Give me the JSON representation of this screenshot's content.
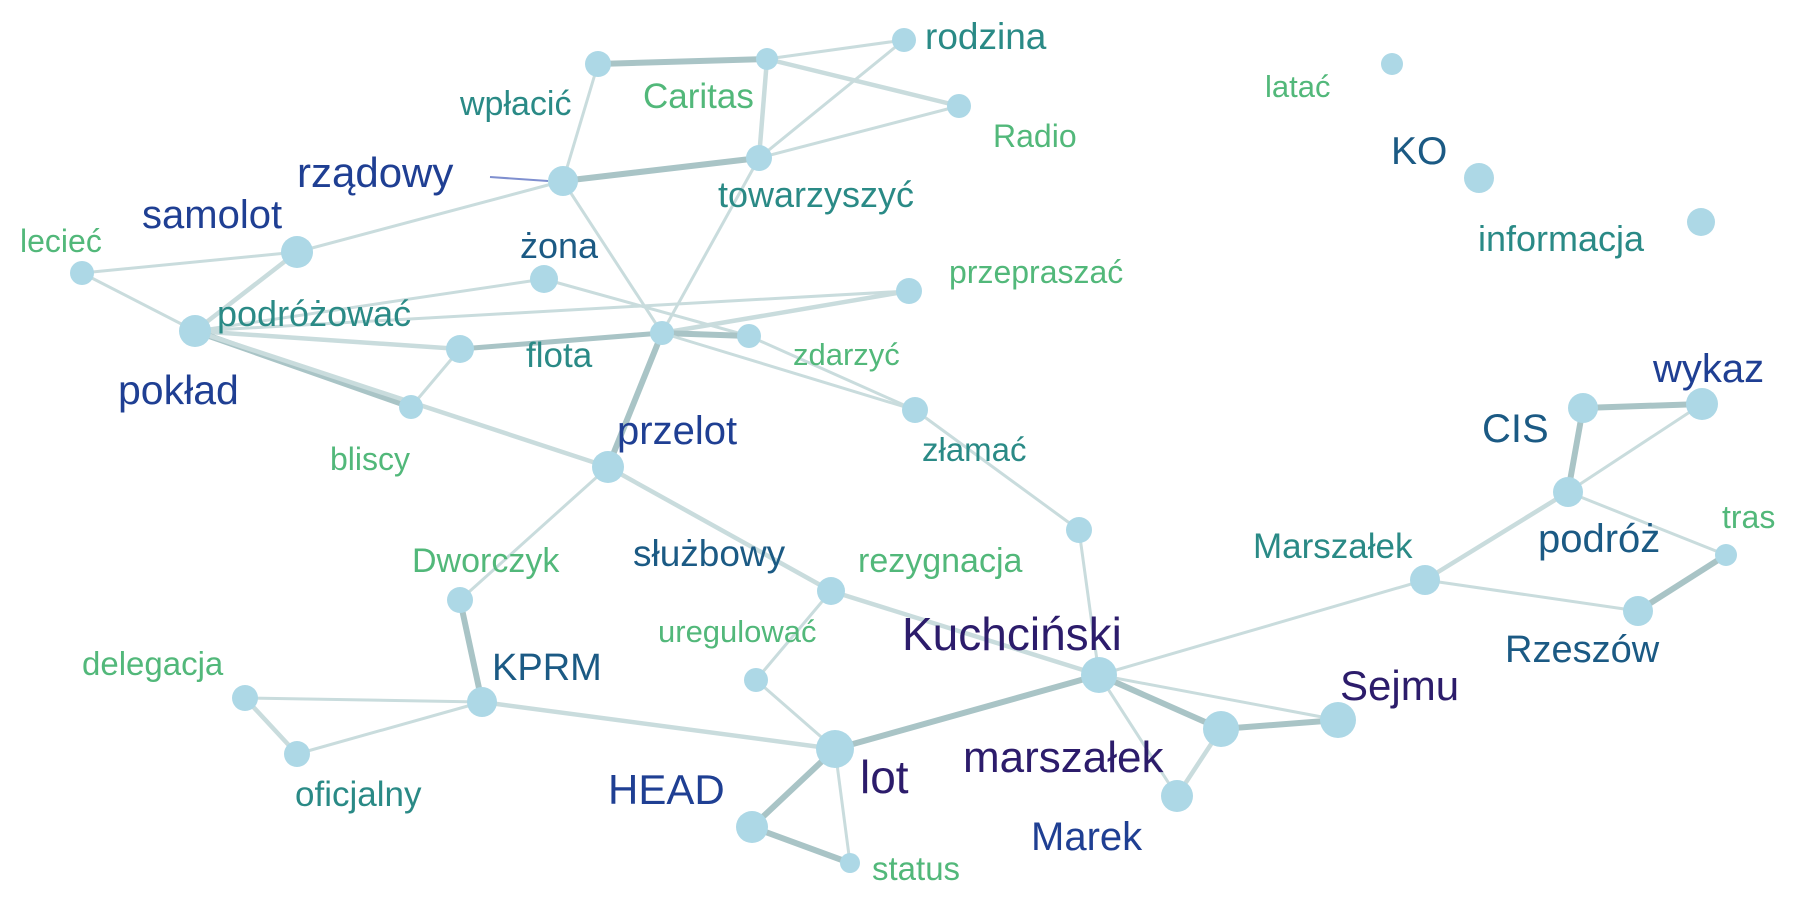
{
  "colors": {
    "node": "#add8e6",
    "edge": "#a9c4c6",
    "edge_light": "#c9dcdd",
    "edge_blue": "#7f8fcf",
    "label_green": "#52b87a",
    "label_teal": "#2a8a86",
    "label_blue": "#1b5a84",
    "label_navy": "#1f3f93",
    "label_dark": "#2c1c6b"
  },
  "nodes": [
    {
      "id": "rodzina",
      "label": "rodzina",
      "tone": "label_teal"
    },
    {
      "id": "caritas",
      "label": "Caritas",
      "tone": "label_green"
    },
    {
      "id": "wplacic",
      "label": "wpłacić",
      "tone": "label_teal"
    },
    {
      "id": "radio",
      "label": "Radio",
      "tone": "label_green"
    },
    {
      "id": "towarzyszyc",
      "label": "towarzyszyć",
      "tone": "label_teal"
    },
    {
      "id": "rzadowy",
      "label": "rządowy",
      "tone": "label_navy"
    },
    {
      "id": "samolot",
      "label": "samolot",
      "tone": "label_navy"
    },
    {
      "id": "leciec",
      "label": "lecieć",
      "tone": "label_green"
    },
    {
      "id": "zona",
      "label": "żona",
      "tone": "label_blue"
    },
    {
      "id": "przepraszac",
      "label": "przepraszać",
      "tone": "label_green"
    },
    {
      "id": "podrozowac",
      "label": "podróżować",
      "tone": "label_teal"
    },
    {
      "id": "poklad",
      "label": "pokład",
      "tone": "label_navy"
    },
    {
      "id": "flota",
      "label": "flota",
      "tone": "label_teal"
    },
    {
      "id": "zdarzyc",
      "label": "zdarzyć",
      "tone": "label_green"
    },
    {
      "id": "bliscy",
      "label": "bliscy",
      "tone": "label_green"
    },
    {
      "id": "zlamac",
      "label": "złamać",
      "tone": "label_teal"
    },
    {
      "id": "przelot",
      "label": "przelot",
      "tone": "label_navy"
    },
    {
      "id": "rezygnacja",
      "label": "rezygnacja",
      "tone": "label_green"
    },
    {
      "id": "dworczyk",
      "label": "Dworczyk",
      "tone": "label_green"
    },
    {
      "id": "sluzbowy",
      "label": "służbowy",
      "tone": "label_blue"
    },
    {
      "id": "uregulowac",
      "label": "uregulować",
      "tone": "label_green"
    },
    {
      "id": "kprm",
      "label": "KPRM",
      "tone": "label_blue"
    },
    {
      "id": "delegacja",
      "label": "delegacja",
      "tone": "label_green"
    },
    {
      "id": "oficjalny",
      "label": "oficjalny",
      "tone": "label_teal"
    },
    {
      "id": "kuchcinski",
      "label": "Kuchciński",
      "tone": "label_dark"
    },
    {
      "id": "lot",
      "label": "lot",
      "tone": "label_dark"
    },
    {
      "id": "head",
      "label": "HEAD",
      "tone": "label_navy"
    },
    {
      "id": "status",
      "label": "status",
      "tone": "label_green"
    },
    {
      "id": "marszalek_lower",
      "label": "marszałek",
      "tone": "label_dark"
    },
    {
      "id": "sejmu",
      "label": "Sejmu",
      "tone": "label_dark"
    },
    {
      "id": "marek",
      "label": "Marek",
      "tone": "label_navy"
    },
    {
      "id": "latac",
      "label": "latać",
      "tone": "label_green"
    },
    {
      "id": "ko",
      "label": "KO",
      "tone": "label_blue"
    },
    {
      "id": "informacja",
      "label": "informacja",
      "tone": "label_teal"
    },
    {
      "id": "wykaz",
      "label": "wykaz",
      "tone": "label_navy"
    },
    {
      "id": "cis",
      "label": "CIS",
      "tone": "label_blue"
    },
    {
      "id": "marszalek_upper",
      "label": "Marszałek",
      "tone": "label_teal"
    },
    {
      "id": "podroz",
      "label": "podróż",
      "tone": "label_blue"
    },
    {
      "id": "tras",
      "label": "tras",
      "tone": "label_green"
    },
    {
      "id": "rzeszow",
      "label": "Rzeszów",
      "tone": "label_blue"
    }
  ],
  "edges": [
    {
      "source": "wplacic",
      "target": "caritas",
      "weight": 3
    },
    {
      "source": "caritas",
      "target": "rodzina",
      "weight": 1
    },
    {
      "source": "caritas",
      "target": "radio",
      "weight": 2
    },
    {
      "source": "caritas",
      "target": "towarzyszyc",
      "weight": 2
    },
    {
      "source": "rodzina",
      "target": "towarzyszyc",
      "weight": 1
    },
    {
      "source": "radio",
      "target": "towarzyszyc",
      "weight": 1
    },
    {
      "source": "wplacic",
      "target": "rzadowy",
      "weight": 1
    },
    {
      "source": "rzadowy",
      "target": "towarzyszyc",
      "weight": 3
    },
    {
      "source": "rzadowy",
      "target": "samolot",
      "weight": 1
    },
    {
      "source": "rzadowy",
      "target": "flota",
      "weight": 1
    },
    {
      "source": "towarzyszyc",
      "target": "flota",
      "weight": 1
    },
    {
      "source": "samolot",
      "target": "leciec",
      "weight": 1
    },
    {
      "source": "samolot",
      "target": "poklad",
      "weight": 1
    },
    {
      "source": "samolot",
      "target": "podrozowac",
      "weight": 2
    },
    {
      "source": "leciec",
      "target": "poklad",
      "weight": 1
    },
    {
      "source": "poklad",
      "target": "podrozowac",
      "weight": 2
    },
    {
      "source": "podrozowac",
      "target": "zona",
      "weight": 1
    },
    {
      "source": "podrozowac",
      "target": "flota",
      "weight": 2
    },
    {
      "source": "podrozowac",
      "target": "przepraszac",
      "weight": 1
    },
    {
      "source": "podrozowac",
      "target": "bliscy",
      "weight": 3
    },
    {
      "source": "podrozowac",
      "target": "przelot",
      "weight": 2
    },
    {
      "source": "zona",
      "target": "zdarzyc",
      "weight": 1
    },
    {
      "source": "flota",
      "target": "przepraszac",
      "weight": 2
    },
    {
      "source": "flota",
      "target": "zdarzyc",
      "weight": 3
    },
    {
      "source": "flota",
      "target": "zlamac",
      "weight": 1
    },
    {
      "source": "flota",
      "target": "przelot",
      "weight": 3
    },
    {
      "source": "flota",
      "target": "bliscy",
      "weight": 1
    },
    {
      "source": "zdarzyc",
      "target": "zlamac",
      "weight": 1
    },
    {
      "source": "zlamac",
      "target": "rezygnacja",
      "weight": 1
    },
    {
      "source": "przelot",
      "target": "dworczyk",
      "weight": 1
    },
    {
      "source": "przelot",
      "target": "sluzbowy",
      "weight": 2
    },
    {
      "source": "dworczyk",
      "target": "kprm",
      "weight": 3
    },
    {
      "source": "kprm",
      "target": "delegacja",
      "weight": 1
    },
    {
      "source": "kprm",
      "target": "oficjalny",
      "weight": 1
    },
    {
      "source": "delegacja",
      "target": "oficjalny",
      "weight": 2
    },
    {
      "source": "kprm",
      "target": "lot",
      "weight": 2
    },
    {
      "source": "sluzbowy",
      "target": "kuchcinski",
      "weight": 2
    },
    {
      "source": "sluzbowy",
      "target": "uregulowac",
      "weight": 1
    },
    {
      "source": "uregulowac",
      "target": "lot",
      "weight": 1
    },
    {
      "source": "rezygnacja",
      "target": "kuchcinski",
      "weight": 1
    },
    {
      "source": "lot",
      "target": "kuchcinski",
      "weight": 3
    },
    {
      "source": "lot",
      "target": "head",
      "weight": 3
    },
    {
      "source": "lot",
      "target": "status",
      "weight": 1
    },
    {
      "source": "head",
      "target": "status",
      "weight": 3
    },
    {
      "source": "kuchcinski",
      "target": "marszalek_lower",
      "weight": 3
    },
    {
      "source": "kuchcinski",
      "target": "sejmu",
      "weight": 1
    },
    {
      "source": "kuchcinski",
      "target": "marek",
      "weight": 1
    },
    {
      "source": "marszalek_lower",
      "target": "sejmu",
      "weight": 3
    },
    {
      "source": "marszalek_lower",
      "target": "marek",
      "weight": 2
    },
    {
      "source": "kuchcinski",
      "target": "marszalek_upper",
      "weight": 1
    },
    {
      "source": "marszalek_upper",
      "target": "podroz",
      "weight": 2
    },
    {
      "source": "marszalek_upper",
      "target": "rzeszow",
      "weight": 1
    },
    {
      "source": "rzeszow",
      "target": "tras",
      "weight": 3
    },
    {
      "source": "podroz",
      "target": "tras",
      "weight": 1
    },
    {
      "source": "podroz",
      "target": "cis",
      "weight": 3
    },
    {
      "source": "podroz",
      "target": "wykaz",
      "weight": 1
    },
    {
      "source": "cis",
      "target": "wykaz",
      "weight": 3
    }
  ]
}
